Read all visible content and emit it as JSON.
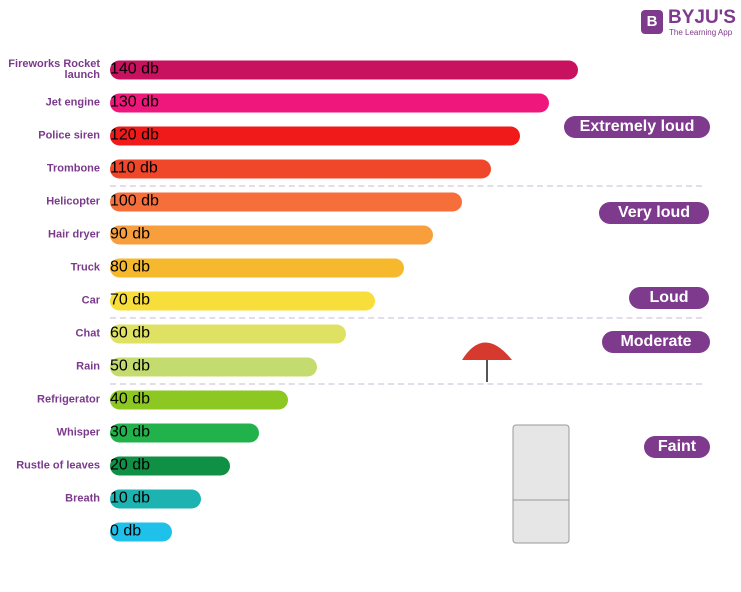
{
  "chart_data": {
    "type": "bar",
    "orientation": "horizontal",
    "categories": [
      "Fireworks Rocket launch",
      "Jet engine",
      "Police siren",
      "Trombone",
      "Helicopter",
      "Hair dryer",
      "Truck",
      "Car",
      "Chat",
      "Rain",
      "Refrigerator",
      "Whisper",
      "Rustle of leaves",
      "Breath",
      null
    ],
    "values": [
      140,
      130,
      120,
      110,
      100,
      90,
      80,
      70,
      60,
      50,
      40,
      30,
      20,
      10,
      0
    ],
    "value_labels": [
      "140 db",
      "130 db",
      "120 db",
      "110 db",
      "100 db",
      "90 db",
      "80 db",
      "70 db",
      "60 db",
      "50 db",
      "40 db",
      "30 db",
      "20 db",
      "10 db",
      "0 db"
    ],
    "colors": [
      "#c8115f",
      "#f0177c",
      "#f01a1a",
      "#f0472a",
      "#f66f3b",
      "#f89e3d",
      "#f6b92d",
      "#f7de3a",
      "#dfe163",
      "#c4dc6f",
      "#8cc821",
      "#22b24c",
      "#0f9045",
      "#1cb3b0",
      "#1fc0ea"
    ],
    "annotations": [
      "Extremely loud",
      "Very loud",
      "Loud",
      "Moderate",
      "Faint"
    ]
  },
  "brand": {
    "logo": "B",
    "name": "BYJU'S",
    "tagline": "The Learning App"
  }
}
